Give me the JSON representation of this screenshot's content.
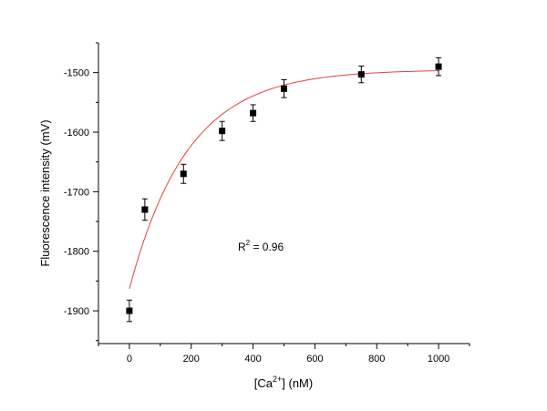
{
  "chart_data": {
    "type": "scatter",
    "xlabel": "[Ca2+] (nM)",
    "xlabel_parts": {
      "prefix": "[Ca",
      "sup": "2+",
      "suffix": "] (nM)"
    },
    "ylabel": "Fluorescence intensity (mV)",
    "xlim": [
      -100,
      1100
    ],
    "ylim": [
      -1955,
      -1450
    ],
    "x_ticks": [
      0,
      200,
      400,
      600,
      800,
      1000
    ],
    "y_ticks": [
      -1900,
      -1800,
      -1700,
      -1600,
      -1500
    ],
    "x_minor_ticks": [
      -100,
      100,
      300,
      500,
      700,
      900,
      1100
    ],
    "y_minor_ticks": [
      -1950,
      -1850,
      -1750,
      -1650,
      -1550,
      -1450
    ],
    "grid": false,
    "points": [
      {
        "x": 0,
        "y": -1900,
        "err": 18
      },
      {
        "x": 50,
        "y": -1730,
        "err": 18
      },
      {
        "x": 175,
        "y": -1670,
        "err": 16
      },
      {
        "x": 300,
        "y": -1598,
        "err": 16
      },
      {
        "x": 400,
        "y": -1568,
        "err": 14
      },
      {
        "x": 500,
        "y": -1527,
        "err": 15
      },
      {
        "x": 750,
        "y": -1503,
        "err": 14
      },
      {
        "x": 1000,
        "y": -1490,
        "err": 15
      }
    ],
    "fit": {
      "type": "exponential",
      "y0": -1495,
      "amplitude": -368,
      "k": 0.0053,
      "x_range": [
        0,
        1000
      ],
      "color": "#e8413a"
    },
    "marker_color": "#000000",
    "annotation": {
      "text": "R2 = 0.96",
      "prefix": "R",
      "sup": "2",
      "suffix": " = 0.96"
    }
  }
}
